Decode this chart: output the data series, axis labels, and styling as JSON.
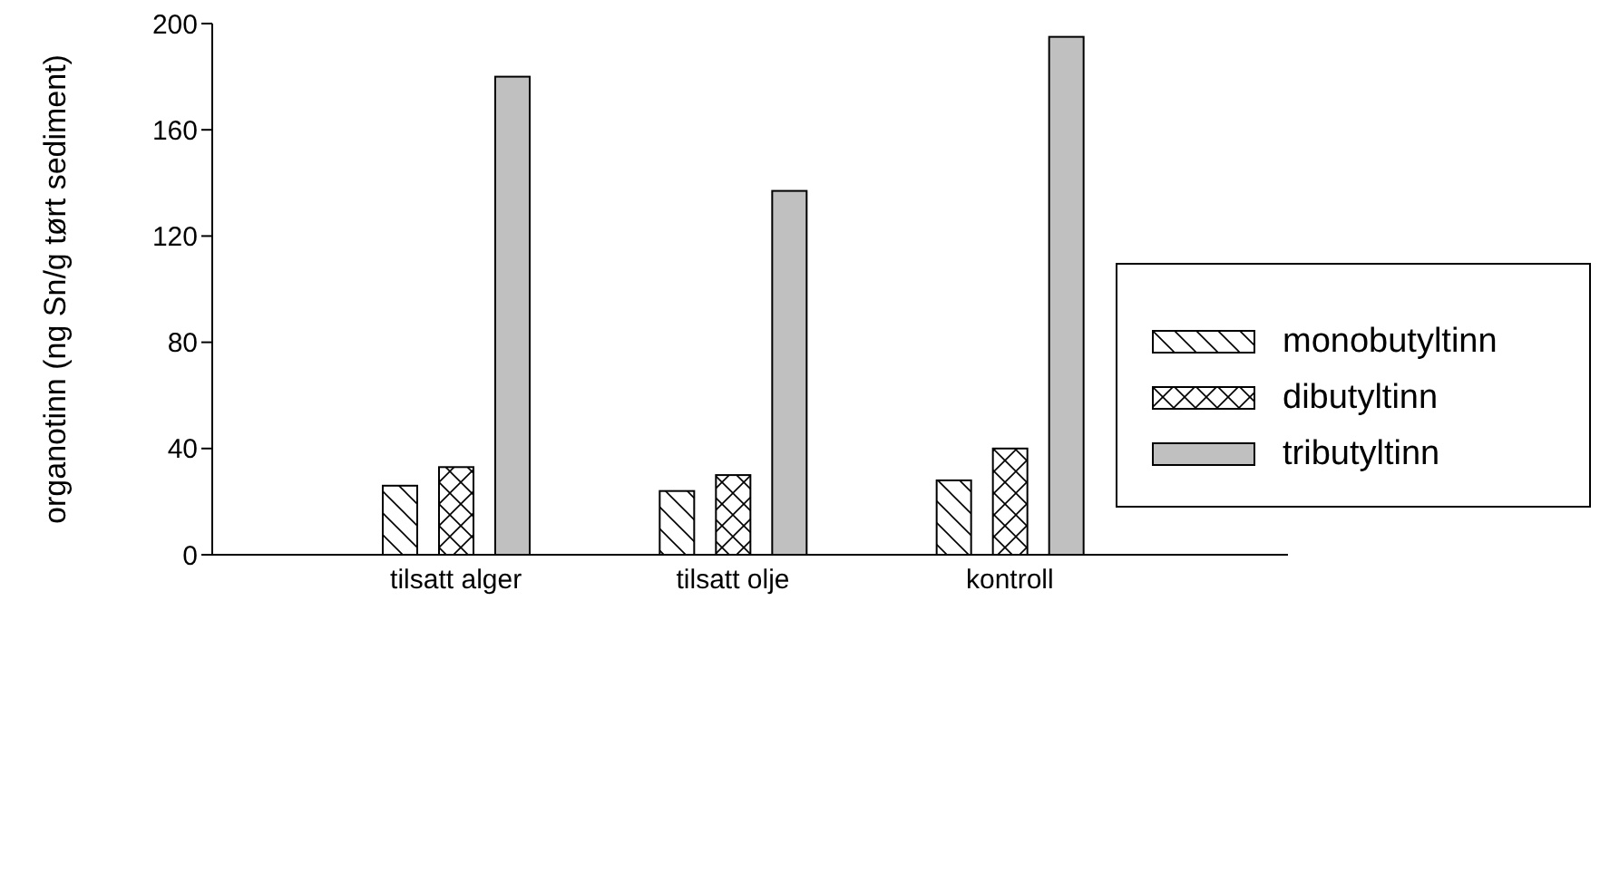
{
  "chart_data": {
    "type": "bar",
    "ylabel": "organotinn (ng Sn/g tørt sediment)",
    "categories": [
      "tilsatt alger",
      "tilsatt olje",
      "kontroll"
    ],
    "series": [
      {
        "name": "monobutyltinn",
        "color": "#ffffff",
        "values": [
          26,
          24,
          28
        ]
      },
      {
        "name": "dibutyltinn",
        "color": "#ffffff",
        "values": [
          33,
          30,
          40
        ]
      },
      {
        "name": "tributyltinn",
        "color": "#c0c0c0",
        "values": [
          180,
          137,
          195
        ]
      }
    ],
    "ylim": [
      0,
      200
    ],
    "yticks": [
      0,
      40,
      80,
      120,
      160,
      200
    ],
    "grid": false,
    "legend": "right"
  }
}
